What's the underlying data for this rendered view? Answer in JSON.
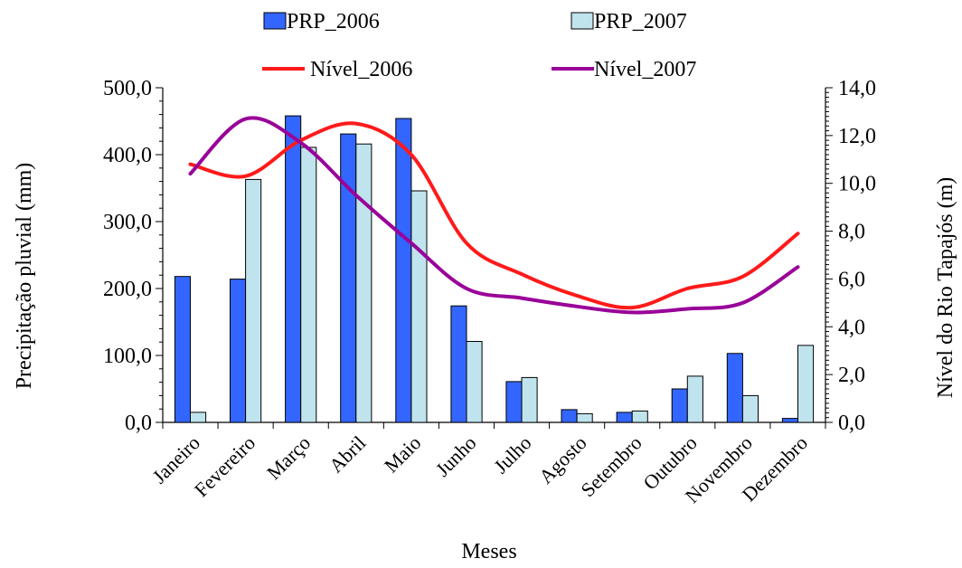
{
  "chart_data": {
    "type": "bar",
    "xlabel": "Meses",
    "ylabel": "Precipitação pluvial (mm)",
    "y2label": "Nível  do Rio Tapajós (m)",
    "categories": [
      "Janeiro",
      "Fevereiro",
      "Março",
      "Abril",
      "Maio",
      "Junho",
      "Julho",
      "Agosto",
      "Setembro",
      "Outubro",
      "Novembro",
      "Dezembro"
    ],
    "ylim": [
      0,
      500
    ],
    "y2lim": [
      0,
      14
    ],
    "yticks": [
      "0,0",
      "100,0",
      "200,0",
      "300,0",
      "400,0",
      "500,0"
    ],
    "y2ticks": [
      "0,0",
      "2,0",
      "4,0",
      "6,0",
      "8,0",
      "10,0",
      "12,0",
      "14,0"
    ],
    "legend_position": "top-center",
    "grid": false,
    "bar_series": [
      {
        "name": "PRP_2006",
        "color": "#3366ff",
        "values": [
          218,
          214,
          458,
          431,
          454,
          174,
          61,
          19,
          15,
          50,
          103,
          6
        ]
      },
      {
        "name": "PRP_2007",
        "color": "#c0e4ee",
        "values": [
          15,
          363,
          411,
          416,
          346,
          121,
          67,
          13,
          17,
          69,
          40,
          115
        ]
      }
    ],
    "line_series": [
      {
        "name": "Nível_2006",
        "color": "#ff1a1a",
        "axis": "right",
        "values": [
          10.8,
          10.3,
          11.8,
          12.5,
          11.2,
          7.5,
          6.2,
          5.3,
          4.8,
          5.6,
          6.1,
          7.9
        ]
      },
      {
        "name": "Nível_2007",
        "color": "#990099",
        "axis": "right",
        "values": [
          10.4,
          12.7,
          11.7,
          9.5,
          7.5,
          5.6,
          5.2,
          4.85,
          4.6,
          4.75,
          5.0,
          6.5
        ]
      }
    ]
  }
}
